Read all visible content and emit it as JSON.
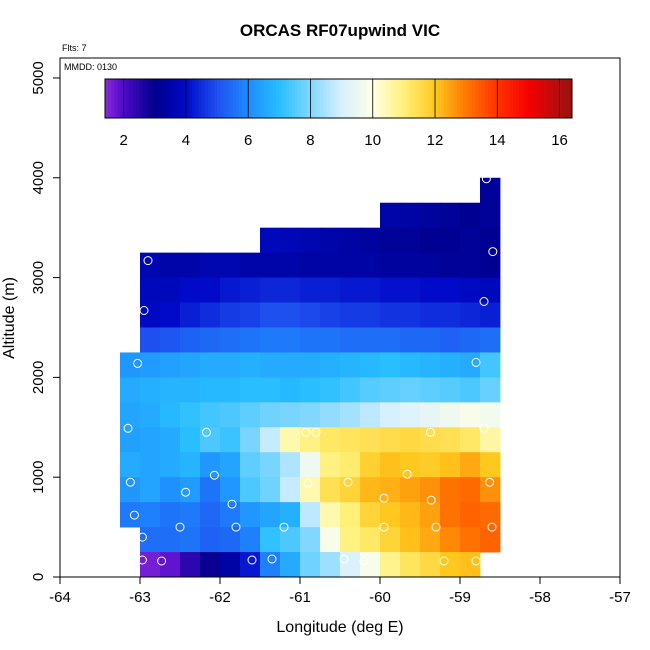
{
  "chart_data": {
    "type": "heatmap",
    "title": "ORCAS RF07upwind VIC",
    "xlabel": "Longitude (deg E)",
    "ylabel": "Altitude (m)",
    "xlim": [
      -64,
      -57
    ],
    "ylim": [
      0,
      5200
    ],
    "x_ticks": [
      -64,
      -63,
      -62,
      -61,
      -60,
      -59,
      -58,
      -57
    ],
    "y_ticks": [
      0,
      1000,
      2000,
      3000,
      4000,
      5000
    ],
    "annotations": {
      "flights": "Flts: 7",
      "date": "MMDD: 0130"
    },
    "colorbar": {
      "min": 1.4,
      "max": 16.4,
      "ticks": [
        2,
        4,
        6,
        8,
        10,
        12,
        14,
        16
      ]
    },
    "cell_size": {
      "lon": 0.25,
      "alt": 250
    },
    "rows": [
      {
        "alt": [
          3750,
          4000
        ],
        "lon": [
          -58.75,
          -58.5
        ],
        "values": [
          3.2
        ]
      },
      {
        "alt": [
          3500,
          3750
        ],
        "lon": [
          -60,
          -58.5
        ],
        "values": [
          3.5,
          3.4,
          3.3,
          3.2,
          3.1,
          3.2
        ]
      },
      {
        "alt": [
          3250,
          3500
        ],
        "lon": [
          -61.5,
          -58.5
        ],
        "values": [
          3.8,
          3.7,
          3.6,
          3.5,
          3.4,
          3.3,
          3.2,
          3.2,
          3.1,
          3.1,
          3.2,
          3.1
        ]
      },
      {
        "alt": [
          3000,
          3250
        ],
        "lon": [
          -63,
          -58.5
        ],
        "values": [
          3.6,
          3.5,
          3.5,
          3.6,
          3.6,
          3.5,
          3.5,
          3.5,
          3.4,
          3.4,
          3.4,
          3.4,
          3.3,
          3.3,
          3.3,
          3.2,
          3.2,
          3.1
        ]
      },
      {
        "alt": [
          2750,
          3000
        ],
        "lon": [
          -63,
          -58.5
        ],
        "values": [
          3.8,
          3.8,
          4.0,
          4.0,
          4.2,
          4.3,
          4.4,
          4.4,
          4.3,
          4.3,
          4.2,
          4.2,
          4.1,
          4.1,
          4.0,
          4.0,
          3.9,
          3.8
        ]
      },
      {
        "alt": [
          2500,
          2750
        ],
        "lon": [
          -63,
          -58.5
        ],
        "values": [
          3.9,
          4.0,
          4.3,
          4.5,
          4.7,
          4.8,
          5.0,
          5.0,
          4.9,
          4.8,
          4.7,
          4.7,
          4.6,
          4.6,
          4.5,
          4.5,
          4.4,
          4.3
        ]
      },
      {
        "alt": [
          2250,
          2500
        ],
        "lon": [
          -63,
          -58.5
        ],
        "values": [
          5.0,
          5.1,
          5.3,
          5.4,
          5.5,
          5.6,
          5.7,
          5.7,
          5.6,
          5.6,
          5.5,
          5.5,
          5.5,
          5.4,
          5.4,
          5.3,
          5.4,
          5.5
        ]
      },
      {
        "alt": [
          2000,
          2250
        ],
        "lon": [
          -63.25,
          -58.5
        ],
        "values": [
          6.2,
          6.3,
          6.4,
          6.5,
          6.6,
          6.6,
          6.7,
          6.6,
          6.6,
          6.6,
          6.7,
          6.8,
          6.9,
          7.0,
          6.9,
          6.8,
          6.7,
          6.6,
          7.3
        ]
      },
      {
        "alt": [
          1750,
          2000
        ],
        "lon": [
          -63.25,
          -58.5
        ],
        "values": [
          6.6,
          6.7,
          6.8,
          6.8,
          6.9,
          6.9,
          7.0,
          7.0,
          6.9,
          7.0,
          7.1,
          7.3,
          7.5,
          7.6,
          7.7,
          7.6,
          7.5,
          7.4,
          7.7
        ]
      },
      {
        "alt": [
          1500,
          1750
        ],
        "lon": [
          -63.25,
          -58.5
        ],
        "values": [
          6.5,
          6.6,
          6.9,
          7.1,
          7.3,
          7.4,
          7.6,
          7.8,
          7.9,
          8.0,
          8.2,
          8.4,
          8.7,
          9.0,
          9.2,
          9.4,
          9.6,
          9.8,
          9.7
        ]
      },
      {
        "alt": [
          1250,
          1500
        ],
        "lon": [
          -63.25,
          -58.5
        ],
        "values": [
          6.4,
          6.5,
          6.6,
          7.0,
          7.4,
          7.2,
          7.9,
          8.8,
          10.5,
          10.9,
          11.2,
          11.3,
          11.4,
          11.5,
          11.6,
          11.5,
          11.4,
          11.2,
          10.6
        ]
      },
      {
        "alt": [
          1000,
          1250
        ],
        "lon": [
          -63.25,
          -58.5
        ],
        "values": [
          6.6,
          6.5,
          6.6,
          6.8,
          6.2,
          6.5,
          7.6,
          7.9,
          8.5,
          9.6,
          10.9,
          11.1,
          11.8,
          12.1,
          12.0,
          11.9,
          12.1,
          12.4,
          12.0
        ]
      },
      {
        "alt": [
          750,
          1000
        ],
        "lon": [
          -63.25,
          -58.5
        ],
        "values": [
          6.2,
          6.5,
          6.1,
          6.3,
          5.6,
          6.2,
          7.4,
          7.8,
          8.8,
          10.5,
          11.4,
          11.7,
          12.2,
          12.3,
          12.5,
          12.7,
          13.1,
          13.2,
          12.7
        ]
      },
      {
        "alt": [
          500,
          750
        ],
        "lon": [
          -63.25,
          -58.5
        ],
        "values": [
          5.7,
          5.8,
          5.6,
          5.7,
          5.4,
          5.7,
          6.2,
          6.5,
          6.7,
          8.7,
          10.5,
          11.0,
          11.7,
          12.0,
          12.2,
          12.5,
          13.1,
          13.3,
          13.2
        ]
      },
      {
        "alt": [
          250,
          500
        ],
        "lon": [
          -63,
          -58.5
        ],
        "values": [
          5.5,
          5.5,
          5.6,
          5.3,
          5.4,
          5.8,
          7.1,
          7.4,
          8.0,
          9.8,
          10.9,
          11.2,
          11.7,
          12.1,
          12.4,
          12.8,
          13.1,
          13.3
        ]
      },
      {
        "alt": [
          0,
          250
        ],
        "lon": [
          -63,
          -58.75
        ],
        "values": [
          1.6,
          1.8,
          2.4,
          2.9,
          3.4,
          4.2,
          5.8,
          6.6,
          7.8,
          8.3,
          9.1,
          9.8,
          10.8,
          11.3,
          11.6,
          12.0,
          12.1
        ]
      }
    ],
    "points": [
      [
        -58.67,
        3990
      ],
      [
        -58.59,
        3260
      ],
      [
        -58.7,
        2760
      ],
      [
        -62.9,
        3170
      ],
      [
        -62.95,
        2670
      ],
      [
        -63.03,
        2140
      ],
      [
        -58.8,
        2150
      ],
      [
        -63.15,
        1490
      ],
      [
        -62.17,
        1450
      ],
      [
        -60.93,
        1450
      ],
      [
        -60.8,
        1450
      ],
      [
        -59.37,
        1450
      ],
      [
        -58.7,
        1490
      ],
      [
        -63.12,
        950
      ],
      [
        -62.43,
        850
      ],
      [
        -62.07,
        1020
      ],
      [
        -61.85,
        730
      ],
      [
        -60.9,
        940
      ],
      [
        -60.4,
        950
      ],
      [
        -59.66,
        1030
      ],
      [
        -59.95,
        790
      ],
      [
        -59.36,
        770
      ],
      [
        -58.63,
        950
      ],
      [
        -63.07,
        620
      ],
      [
        -62.97,
        400
      ],
      [
        -62.5,
        500
      ],
      [
        -61.8,
        500
      ],
      [
        -61.2,
        500
      ],
      [
        -59.95,
        500
      ],
      [
        -59.3,
        500
      ],
      [
        -58.6,
        500
      ],
      [
        -62.97,
        170
      ],
      [
        -62.73,
        160
      ],
      [
        -61.6,
        170
      ],
      [
        -61.35,
        180
      ],
      [
        -60.45,
        180
      ],
      [
        -60.2,
        160
      ],
      [
        -59.2,
        160
      ],
      [
        -58.8,
        160
      ]
    ]
  }
}
